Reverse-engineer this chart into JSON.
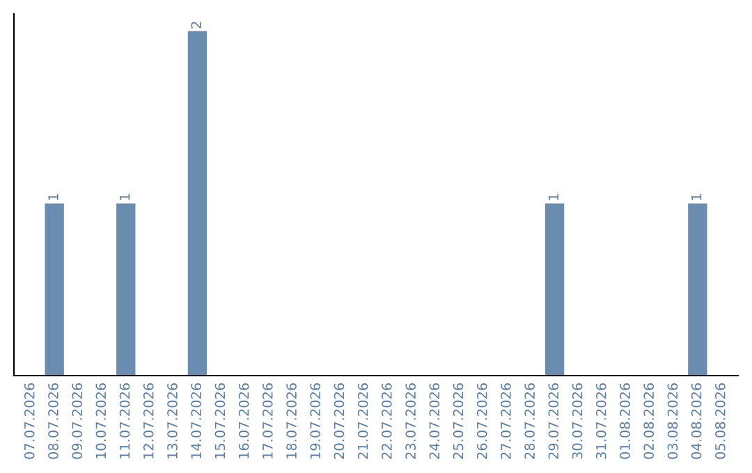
{
  "chart_data": {
    "type": "bar",
    "categories": [
      "07.07.2026",
      "08.07.2026",
      "09.07.2026",
      "10.07.2026",
      "11.07.2026",
      "12.07.2026",
      "13.07.2026",
      "14.07.2026",
      "15.07.2026",
      "16.07.2026",
      "17.07.2026",
      "18.07.2026",
      "19.07.2026",
      "20.07.2026",
      "21.07.2026",
      "22.07.2026",
      "23.07.2026",
      "24.07.2026",
      "25.07.2026",
      "26.07.2026",
      "27.07.2026",
      "28.07.2026",
      "29.07.2026",
      "30.07.2026",
      "31.07.2026",
      "01.08.2026",
      "02.08.2026",
      "03.08.2026",
      "04.08.2026",
      "05.08.2026"
    ],
    "values": [
      0,
      1,
      0,
      0,
      1,
      0,
      0,
      2,
      0,
      0,
      0,
      0,
      0,
      0,
      0,
      0,
      0,
      0,
      0,
      0,
      0,
      0,
      1,
      0,
      0,
      0,
      0,
      0,
      1,
      0
    ],
    "value_labels": [
      null,
      "1",
      null,
      null,
      "1",
      null,
      null,
      "2",
      null,
      null,
      null,
      null,
      null,
      null,
      null,
      null,
      null,
      null,
      null,
      null,
      null,
      null,
      "1",
      null,
      null,
      null,
      null,
      null,
      "1",
      null
    ],
    "color": "#6a8caf",
    "tick_labels": "x",
    "grid": false,
    "legend": false
  }
}
